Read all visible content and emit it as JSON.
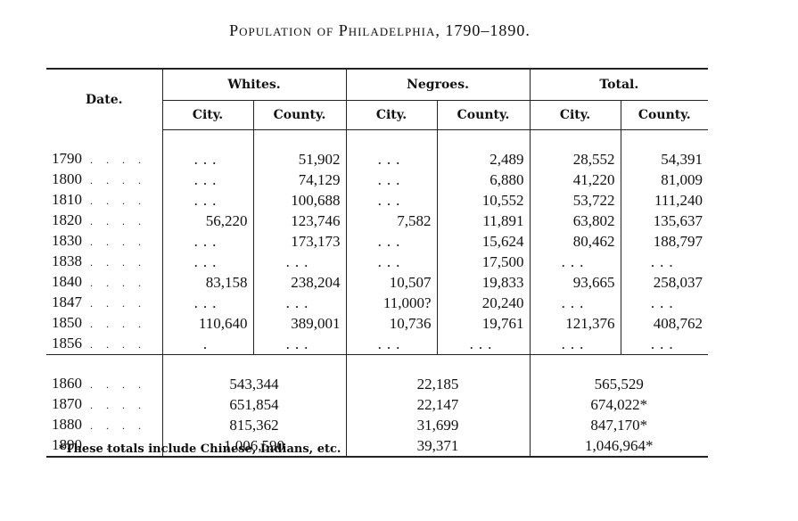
{
  "title": "Population of Philadelphia, 1790–1890.",
  "headers": {
    "date": "Date.",
    "whites": "Whites.",
    "negroes": "Negroes.",
    "total": "Total.",
    "city": "City.",
    "county": "County."
  },
  "rows_early": [
    {
      "year": "1790",
      "wc": "...",
      "wy": "51,902",
      "nc": "...",
      "ny": "2,489",
      "tc": "28,552",
      "ty": "54,391"
    },
    {
      "year": "1800",
      "wc": "...",
      "wy": "74,129",
      "nc": "...",
      "ny": "6,880",
      "tc": "41,220",
      "ty": "81,009"
    },
    {
      "year": "1810",
      "wc": "...",
      "wy": "100,688",
      "nc": "...",
      "ny": "10,552",
      "tc": "53,722",
      "ty": "111,240"
    },
    {
      "year": "1820",
      "wc": "56,220",
      "wy": "123,746",
      "nc": "7,582",
      "ny": "11,891",
      "tc": "63,802",
      "ty": "135,637"
    },
    {
      "year": "1830",
      "wc": "...",
      "wy": "173,173",
      "nc": "...",
      "ny": "15,624",
      "tc": "80,462",
      "ty": "188,797"
    },
    {
      "year": "1838",
      "wc": "...",
      "wy": "...",
      "nc": "...",
      "ny": "17,500",
      "tc": "...",
      "ty": "..."
    },
    {
      "year": "1840",
      "wc": "83,158",
      "wy": "238,204",
      "nc": "10,507",
      "ny": "19,833",
      "tc": "93,665",
      "ty": "258,037"
    },
    {
      "year": "1847",
      "wc": "...",
      "wy": "...",
      "nc": "11,000?",
      "ny": "20,240",
      "tc": "...",
      "ty": "..."
    },
    {
      "year": "1850",
      "wc": "110,640",
      "wy": "389,001",
      "nc": "10,736",
      "ny": "19,761",
      "tc": "121,376",
      "ty": "408,762"
    },
    {
      "year": "1856",
      "wc": ".",
      "wy": "...",
      "nc": "...",
      "ny": "...",
      "tc": "...",
      "ty": "..."
    }
  ],
  "rows_late": [
    {
      "year": "1860",
      "whites": "543,344",
      "negroes": "22,185",
      "total": "565,529"
    },
    {
      "year": "1870",
      "whites": "651,854",
      "negroes": "22,147",
      "total": "674,022*"
    },
    {
      "year": "1880",
      "whites": "815,362",
      "negroes": "31,699",
      "total": "847,170*"
    },
    {
      "year": "1890",
      "whites": "1,006,590",
      "negroes": "39,371",
      "total": "1,046,964*"
    }
  ],
  "footnote": "*These totals include Chinese, Indians, etc."
}
